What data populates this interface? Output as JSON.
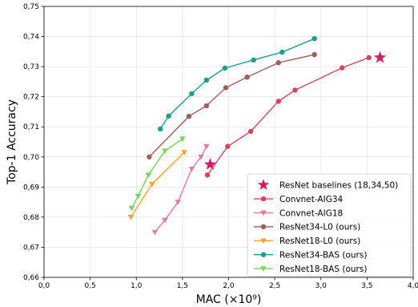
{
  "chart_data": {
    "type": "line",
    "xlabel": "MAC (×10⁹)",
    "ylabel": "Top-1 Accuracy",
    "xlim": [
      0.0,
      4.0
    ],
    "ylim": [
      0.66,
      0.75
    ],
    "xticks": [
      "0,0",
      "0,5",
      "1,0",
      "1,5",
      "2,0",
      "2,5",
      "3,0",
      "3,5",
      "4,0"
    ],
    "yticks": [
      "0,66",
      "0,67",
      "0,68",
      "0,69",
      "0,70",
      "0,71",
      "0,72",
      "0,73",
      "0,74",
      "0,75"
    ],
    "grid": true,
    "legend_position": "bottom-right",
    "series": [
      {
        "name": "ResNet baselines (18,34,50)",
        "marker": "star",
        "line": false,
        "color": "#d81b60",
        "x": [
          1.8,
          3.64
        ],
        "y": [
          0.6975,
          0.733
        ]
      },
      {
        "name": "Convnet-AIG34",
        "marker": "circle",
        "line": true,
        "color": "#d6455e",
        "x": [
          1.77,
          1.99,
          2.24,
          2.54,
          2.72,
          3.23,
          3.52
        ],
        "y": [
          0.694,
          0.7035,
          0.7085,
          0.7185,
          0.7222,
          0.7296,
          0.733
        ]
      },
      {
        "name": "Convnet-AIG18",
        "marker": "triangle-down",
        "line": true,
        "color": "#e8789f",
        "x": [
          1.2,
          1.31,
          1.45,
          1.6,
          1.7,
          1.76
        ],
        "y": [
          0.675,
          0.679,
          0.685,
          0.696,
          0.7,
          0.7035
        ]
      },
      {
        "name": "ResNet34-L0 (ours)",
        "marker": "circle",
        "line": true,
        "color": "#a15c5c",
        "x": [
          1.14,
          1.57,
          1.76,
          1.97,
          2.2,
          2.54,
          2.93
        ],
        "y": [
          0.7,
          0.7135,
          0.717,
          0.723,
          0.7265,
          0.7313,
          0.734
        ]
      },
      {
        "name": "ResNet18-L0 (ours)",
        "marker": "triangle-down",
        "line": true,
        "color": "#f7a22c",
        "x": [
          0.94,
          1.17,
          1.52
        ],
        "y": [
          0.68,
          0.691,
          0.7015
        ]
      },
      {
        "name": "ResNet34-BAS (ours)",
        "marker": "circle",
        "line": true,
        "color": "#1e9e87",
        "x": [
          1.26,
          1.35,
          1.6,
          1.76,
          1.96,
          2.27,
          2.58,
          2.93
        ],
        "y": [
          0.7093,
          0.7136,
          0.721,
          0.7255,
          0.7295,
          0.7322,
          0.7348,
          0.7393
        ]
      },
      {
        "name": "ResNet18-BAS (ours)",
        "marker": "triangle-down",
        "line": true,
        "color": "#73d45a",
        "x": [
          0.95,
          1.02,
          1.13,
          1.31,
          1.5
        ],
        "y": [
          0.683,
          0.687,
          0.694,
          0.702,
          0.706
        ]
      }
    ]
  }
}
